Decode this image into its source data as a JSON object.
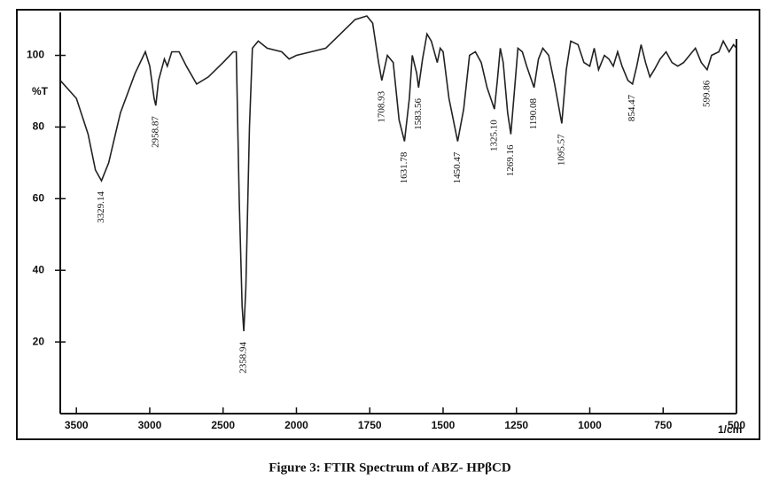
{
  "chart_data": {
    "type": "line",
    "title": "Figure 3: FTIR Spectrum of ABZ- HPβCD",
    "y_label": "%T",
    "x_label": "1/cm",
    "xlim": [
      3610,
      500
    ],
    "x_scale_break": 2000,
    "xticks": [
      3500,
      3000,
      2500,
      2000,
      1750,
      1500,
      1250,
      1000,
      750,
      500
    ],
    "ylim": [
      0,
      112
    ],
    "yticks": [
      20,
      40,
      60,
      80,
      100
    ],
    "color": "#222222",
    "x": [
      3610,
      3500,
      3420,
      3370,
      3329.14,
      3280,
      3200,
      3100,
      3030,
      3000,
      2970,
      2958.87,
      2940,
      2900,
      2880,
      2850,
      2800,
      2750,
      2680,
      2600,
      2500,
      2430,
      2410,
      2390,
      2370,
      2358.94,
      2345,
      2320,
      2300,
      2260,
      2200,
      2100,
      2050,
      2000,
      1950,
      1900,
      1850,
      1800,
      1760,
      1740,
      1720,
      1708.93,
      1690,
      1670,
      1650,
      1631.78,
      1615,
      1605,
      1590,
      1583.56,
      1570,
      1555,
      1540,
      1520,
      1510,
      1500,
      1480,
      1450.47,
      1430,
      1410,
      1390,
      1370,
      1350,
      1325.1,
      1315,
      1305,
      1295,
      1280,
      1269.16,
      1255,
      1245,
      1230,
      1215,
      1190.08,
      1175,
      1160,
      1140,
      1120,
      1095.57,
      1080,
      1065,
      1040,
      1020,
      1000,
      985,
      970,
      950,
      935,
      920,
      905,
      890,
      870,
      854.47,
      840,
      825,
      810,
      795,
      780,
      760,
      740,
      720,
      700,
      680,
      660,
      640,
      620,
      599.86,
      585,
      560,
      545,
      525,
      510,
      500
    ],
    "values": [
      93,
      88,
      78,
      68,
      65,
      70,
      84,
      95,
      101,
      97,
      88,
      86,
      93,
      99,
      97,
      101,
      101,
      97,
      92,
      94,
      98,
      101,
      101,
      60,
      30,
      23,
      35,
      80,
      102,
      104,
      102,
      101,
      99,
      100,
      101,
      102,
      106,
      110,
      111,
      109,
      98,
      93,
      100,
      98,
      82,
      76,
      88,
      100,
      95,
      91,
      99,
      106,
      104,
      98,
      102,
      101,
      88,
      76,
      85,
      100,
      101,
      98,
      91,
      85,
      93,
      102,
      98,
      84,
      78,
      92,
      102,
      101,
      97,
      91,
      99,
      102,
      100,
      92,
      81,
      96,
      104,
      103,
      98,
      97,
      102,
      96,
      100,
      99,
      97,
      101,
      97,
      93,
      92,
      97,
      103,
      98,
      94,
      96,
      99,
      101,
      98,
      97,
      98,
      100,
      102,
      98,
      96,
      100,
      101,
      104,
      101,
      103,
      102
    ],
    "annotations": [
      {
        "x": 3329.14,
        "text": "3329.14"
      },
      {
        "x": 2958.87,
        "text": "2958.87"
      },
      {
        "x": 2358.94,
        "text": "2358.94"
      },
      {
        "x": 1708.93,
        "text": "1708.93"
      },
      {
        "x": 1631.78,
        "text": "1631.78"
      },
      {
        "x": 1583.56,
        "text": "1583.56"
      },
      {
        "x": 1450.47,
        "text": "1450.47"
      },
      {
        "x": 1325.1,
        "text": "1325.10"
      },
      {
        "x": 1269.16,
        "text": "1269.16"
      },
      {
        "x": 1190.08,
        "text": "1190.08"
      },
      {
        "x": 1095.57,
        "text": "1095.57"
      },
      {
        "x": 854.47,
        "text": "854.47"
      },
      {
        "x": 599.86,
        "text": "599.86"
      }
    ]
  }
}
